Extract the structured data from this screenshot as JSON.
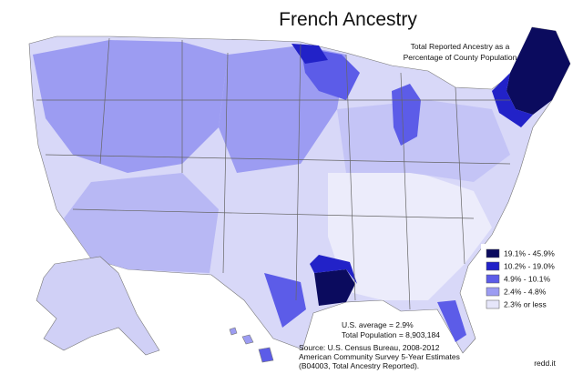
{
  "header": {
    "title": "French Ancestry",
    "subtitle_lines": [
      "Total Reported Ancestry as a",
      "Percentage of County Population"
    ]
  },
  "legend": {
    "items": [
      {
        "label": "19.1% - 45.9%",
        "color": "#0b0b5e"
      },
      {
        "label": "10.2% - 19.0%",
        "color": "#2222c8"
      },
      {
        "label": "4.9% - 10.1%",
        "color": "#5c5ce8"
      },
      {
        "label": "2.4% - 4.8%",
        "color": "#9c9cf2"
      },
      {
        "label": "2.3% or less",
        "color": "#e6e6fa"
      }
    ]
  },
  "notes": [
    "U.S. average = 2.9%",
    "Total Population = 8,903,184"
  ],
  "source_lines": [
    "Source:  U.S. Census Bureau, 2008-2012",
    "American Community Survey 5-Year Estimates",
    "(B04003, Total Ancestry Reported)."
  ],
  "watermark": "redd.it"
}
